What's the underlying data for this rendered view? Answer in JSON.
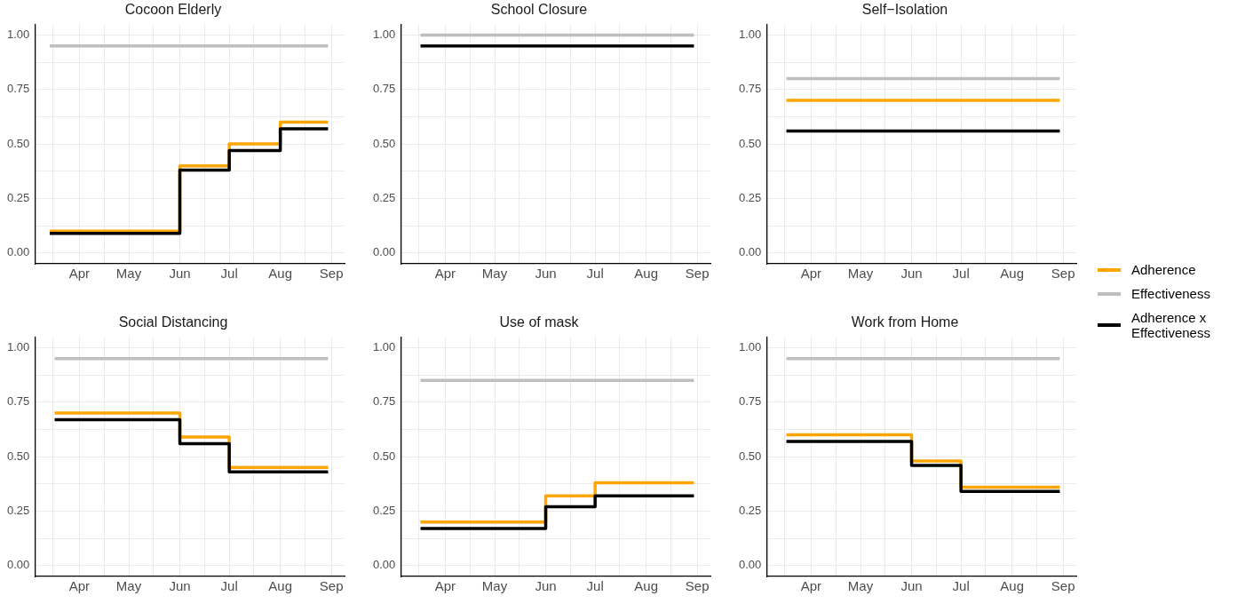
{
  "chart_data": [
    {
      "type": "step",
      "title": "Cocoon Elderly",
      "xlim": [
        "--03-05",
        "--09-09"
      ],
      "ylim": [
        -0.05,
        1.05
      ],
      "grid": true,
      "legend": "right",
      "xticks": [
        {
          "value": "--03-16",
          "label": null
        },
        {
          "value": "--04-01",
          "label": "Apr"
        },
        {
          "value": "--04-16",
          "label": null
        },
        {
          "value": "--05-01",
          "label": "May"
        },
        {
          "value": "--05-16",
          "label": null
        },
        {
          "value": "--06-01",
          "label": "Jun"
        },
        {
          "value": "--06-16",
          "label": null
        },
        {
          "value": "--07-01",
          "label": "Jul"
        },
        {
          "value": "--07-16",
          "label": null
        },
        {
          "value": "--08-01",
          "label": "Aug"
        },
        {
          "value": "--08-16",
          "label": null
        },
        {
          "value": "--09-01",
          "label": "Sep"
        }
      ],
      "yticks": [
        {
          "value": 0,
          "label": "0.00"
        },
        {
          "value": 0.125,
          "label": null
        },
        {
          "value": 0.25,
          "label": "0.25"
        },
        {
          "value": 0.375,
          "label": null
        },
        {
          "value": 0.5,
          "label": "0.50"
        },
        {
          "value": 0.625,
          "label": null
        },
        {
          "value": 0.75,
          "label": "0.75"
        },
        {
          "value": 0.875,
          "label": null
        },
        {
          "value": 1,
          "label": "1.00"
        }
      ],
      "series": [
        {
          "name": "Adherence",
          "color": "#ffa500",
          "x": [
            "--03-14",
            "--06-01",
            "--07-01",
            "--08-01",
            "--08-30"
          ],
          "values": [
            0.1,
            0.4,
            0.5,
            0.6,
            0.6
          ]
        },
        {
          "name": "Effectiveness",
          "color": "#bebebe",
          "x": [
            "--03-14",
            "--08-30"
          ],
          "values": [
            0.95,
            0.95
          ]
        },
        {
          "name": "Adherence x Effectiveness",
          "color": "#000000",
          "x": [
            "--03-14",
            "--06-01",
            "--07-01",
            "--08-01",
            "--08-30"
          ],
          "values": [
            0.09,
            0.38,
            0.47,
            0.57,
            0.57
          ]
        }
      ]
    },
    {
      "type": "step",
      "title": "School Closure",
      "xlim": [
        "--03-05",
        "--09-09"
      ],
      "ylim": [
        -0.05,
        1.05
      ],
      "grid": true,
      "legend": "right",
      "xticks": [
        {
          "value": "--03-16",
          "label": null
        },
        {
          "value": "--04-01",
          "label": "Apr"
        },
        {
          "value": "--04-16",
          "label": null
        },
        {
          "value": "--05-01",
          "label": "May"
        },
        {
          "value": "--05-16",
          "label": null
        },
        {
          "value": "--06-01",
          "label": "Jun"
        },
        {
          "value": "--06-16",
          "label": null
        },
        {
          "value": "--07-01",
          "label": "Jul"
        },
        {
          "value": "--07-16",
          "label": null
        },
        {
          "value": "--08-01",
          "label": "Aug"
        },
        {
          "value": "--08-16",
          "label": null
        },
        {
          "value": "--09-01",
          "label": "Sep"
        }
      ],
      "yticks": [
        {
          "value": 0,
          "label": "0.00"
        },
        {
          "value": 0.125,
          "label": null
        },
        {
          "value": 0.25,
          "label": "0.25"
        },
        {
          "value": 0.375,
          "label": null
        },
        {
          "value": 0.5,
          "label": "0.50"
        },
        {
          "value": 0.625,
          "label": null
        },
        {
          "value": 0.75,
          "label": "0.75"
        },
        {
          "value": 0.875,
          "label": null
        },
        {
          "value": 1,
          "label": "1.00"
        }
      ],
      "series": [
        {
          "name": "Effectiveness",
          "color": "#bebebe",
          "x": [
            "--03-17",
            "--08-30"
          ],
          "values": [
            1,
            1
          ]
        },
        {
          "name": "Adherence x Effectiveness",
          "color": "#000000",
          "x": [
            "--03-17",
            "--08-30"
          ],
          "values": [
            0.95,
            0.95
          ]
        }
      ]
    },
    {
      "type": "step",
      "title": "Self−Isolation",
      "xlim": [
        "--03-05",
        "--09-09"
      ],
      "ylim": [
        -0.05,
        1.05
      ],
      "grid": true,
      "legend": "right",
      "xticks": [
        {
          "value": "--03-16",
          "label": null
        },
        {
          "value": "--04-01",
          "label": "Apr"
        },
        {
          "value": "--04-16",
          "label": null
        },
        {
          "value": "--05-01",
          "label": "May"
        },
        {
          "value": "--05-16",
          "label": null
        },
        {
          "value": "--06-01",
          "label": "Jun"
        },
        {
          "value": "--06-16",
          "label": null
        },
        {
          "value": "--07-01",
          "label": "Jul"
        },
        {
          "value": "--07-16",
          "label": null
        },
        {
          "value": "--08-01",
          "label": "Aug"
        },
        {
          "value": "--08-16",
          "label": null
        },
        {
          "value": "--09-01",
          "label": "Sep"
        }
      ],
      "yticks": [
        {
          "value": 0,
          "label": "0.00"
        },
        {
          "value": 0.125,
          "label": null
        },
        {
          "value": 0.25,
          "label": "0.25"
        },
        {
          "value": 0.375,
          "label": null
        },
        {
          "value": 0.5,
          "label": "0.50"
        },
        {
          "value": 0.625,
          "label": null
        },
        {
          "value": 0.75,
          "label": "0.75"
        },
        {
          "value": 0.875,
          "label": null
        },
        {
          "value": 1,
          "label": "1.00"
        }
      ],
      "series": [
        {
          "name": "Adherence",
          "color": "#ffa500",
          "x": [
            "--03-17",
            "--08-30"
          ],
          "values": [
            0.7,
            0.7
          ]
        },
        {
          "name": "Effectiveness",
          "color": "#bebebe",
          "x": [
            "--03-17",
            "--08-30"
          ],
          "values": [
            0.8,
            0.8
          ]
        },
        {
          "name": "Adherence x Effectiveness",
          "color": "#000000",
          "x": [
            "--03-17",
            "--08-30"
          ],
          "values": [
            0.56,
            0.56
          ]
        }
      ]
    },
    {
      "type": "step",
      "title": "Social Distancing",
      "xlim": [
        "--03-05",
        "--09-09"
      ],
      "ylim": [
        -0.05,
        1.05
      ],
      "grid": true,
      "legend": "right",
      "xticks": [
        {
          "value": "--03-16",
          "label": null
        },
        {
          "value": "--04-01",
          "label": "Apr"
        },
        {
          "value": "--04-16",
          "label": null
        },
        {
          "value": "--05-01",
          "label": "May"
        },
        {
          "value": "--05-16",
          "label": null
        },
        {
          "value": "--06-01",
          "label": "Jun"
        },
        {
          "value": "--06-16",
          "label": null
        },
        {
          "value": "--07-01",
          "label": "Jul"
        },
        {
          "value": "--07-16",
          "label": null
        },
        {
          "value": "--08-01",
          "label": "Aug"
        },
        {
          "value": "--08-16",
          "label": null
        },
        {
          "value": "--09-01",
          "label": "Sep"
        }
      ],
      "yticks": [
        {
          "value": 0,
          "label": "0.00"
        },
        {
          "value": 0.125,
          "label": null
        },
        {
          "value": 0.25,
          "label": "0.25"
        },
        {
          "value": 0.375,
          "label": null
        },
        {
          "value": 0.5,
          "label": "0.50"
        },
        {
          "value": 0.625,
          "label": null
        },
        {
          "value": 0.75,
          "label": "0.75"
        },
        {
          "value": 0.875,
          "label": null
        },
        {
          "value": 1,
          "label": "1.00"
        }
      ],
      "series": [
        {
          "name": "Adherence",
          "color": "#ffa500",
          "x": [
            "--03-17",
            "--06-01",
            "--07-01",
            "--08-30"
          ],
          "values": [
            0.7,
            0.59,
            0.45,
            0.45
          ]
        },
        {
          "name": "Effectiveness",
          "color": "#bebebe",
          "x": [
            "--03-17",
            "--08-30"
          ],
          "values": [
            0.95,
            0.95
          ]
        },
        {
          "name": "Adherence x Effectiveness",
          "color": "#000000",
          "x": [
            "--03-17",
            "--06-01",
            "--07-01",
            "--08-30"
          ],
          "values": [
            0.67,
            0.56,
            0.43,
            0.43
          ]
        }
      ]
    },
    {
      "type": "step",
      "title": "Use of mask",
      "xlim": [
        "--03-05",
        "--09-09"
      ],
      "ylim": [
        -0.05,
        1.05
      ],
      "grid": true,
      "legend": "right",
      "xticks": [
        {
          "value": "--03-16",
          "label": null
        },
        {
          "value": "--04-01",
          "label": "Apr"
        },
        {
          "value": "--04-16",
          "label": null
        },
        {
          "value": "--05-01",
          "label": "May"
        },
        {
          "value": "--05-16",
          "label": null
        },
        {
          "value": "--06-01",
          "label": "Jun"
        },
        {
          "value": "--06-16",
          "label": null
        },
        {
          "value": "--07-01",
          "label": "Jul"
        },
        {
          "value": "--07-16",
          "label": null
        },
        {
          "value": "--08-01",
          "label": "Aug"
        },
        {
          "value": "--08-16",
          "label": null
        },
        {
          "value": "--09-01",
          "label": "Sep"
        }
      ],
      "yticks": [
        {
          "value": 0,
          "label": "0.00"
        },
        {
          "value": 0.125,
          "label": null
        },
        {
          "value": 0.25,
          "label": "0.25"
        },
        {
          "value": 0.375,
          "label": null
        },
        {
          "value": 0.5,
          "label": "0.50"
        },
        {
          "value": 0.625,
          "label": null
        },
        {
          "value": 0.75,
          "label": "0.75"
        },
        {
          "value": 0.875,
          "label": null
        },
        {
          "value": 1,
          "label": "1.00"
        }
      ],
      "series": [
        {
          "name": "Adherence",
          "color": "#ffa500",
          "x": [
            "--03-17",
            "--06-01",
            "--07-01",
            "--08-30"
          ],
          "values": [
            0.2,
            0.32,
            0.38,
            0.38
          ]
        },
        {
          "name": "Effectiveness",
          "color": "#bebebe",
          "x": [
            "--03-17",
            "--08-30"
          ],
          "values": [
            0.85,
            0.85
          ]
        },
        {
          "name": "Adherence x Effectiveness",
          "color": "#000000",
          "x": [
            "--03-17",
            "--06-01",
            "--07-01",
            "--08-30"
          ],
          "values": [
            0.17,
            0.27,
            0.32,
            0.32
          ]
        }
      ]
    },
    {
      "type": "step",
      "title": "Work from Home",
      "xlim": [
        "--03-05",
        "--09-09"
      ],
      "ylim": [
        -0.05,
        1.05
      ],
      "grid": true,
      "legend": "right",
      "xticks": [
        {
          "value": "--03-16",
          "label": null
        },
        {
          "value": "--04-01",
          "label": "Apr"
        },
        {
          "value": "--04-16",
          "label": null
        },
        {
          "value": "--05-01",
          "label": "May"
        },
        {
          "value": "--05-16",
          "label": null
        },
        {
          "value": "--06-01",
          "label": "Jun"
        },
        {
          "value": "--06-16",
          "label": null
        },
        {
          "value": "--07-01",
          "label": "Jul"
        },
        {
          "value": "--07-16",
          "label": null
        },
        {
          "value": "--08-01",
          "label": "Aug"
        },
        {
          "value": "--08-16",
          "label": null
        },
        {
          "value": "--09-01",
          "label": "Sep"
        }
      ],
      "yticks": [
        {
          "value": 0,
          "label": "0.00"
        },
        {
          "value": 0.125,
          "label": null
        },
        {
          "value": 0.25,
          "label": "0.25"
        },
        {
          "value": 0.375,
          "label": null
        },
        {
          "value": 0.5,
          "label": "0.50"
        },
        {
          "value": 0.625,
          "label": null
        },
        {
          "value": 0.75,
          "label": "0.75"
        },
        {
          "value": 0.875,
          "label": null
        },
        {
          "value": 1,
          "label": "1.00"
        }
      ],
      "series": [
        {
          "name": "Adherence",
          "color": "#ffa500",
          "x": [
            "--03-17",
            "--06-01",
            "--07-01",
            "--08-30"
          ],
          "values": [
            0.6,
            0.48,
            0.36,
            0.36
          ]
        },
        {
          "name": "Effectiveness",
          "color": "#bebebe",
          "x": [
            "--03-17",
            "--08-30"
          ],
          "values": [
            0.95,
            0.95
          ]
        },
        {
          "name": "Adherence x Effectiveness",
          "color": "#000000",
          "x": [
            "--03-17",
            "--06-01",
            "--07-01",
            "--08-30"
          ],
          "values": [
            0.57,
            0.46,
            0.34,
            0.34
          ]
        }
      ]
    }
  ]
}
